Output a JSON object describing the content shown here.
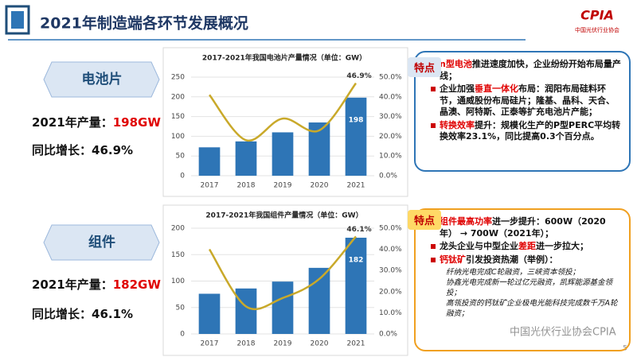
{
  "header": {
    "title": "2021年制造端各环节发展概况",
    "logo": "CPIA",
    "logo_sub": "中国光伏行业协会"
  },
  "sections": [
    {
      "label": "电池片",
      "output_label": "2021年产量：",
      "output_value": "198GW",
      "growth": "同比增长：46.9%"
    },
    {
      "label": "组件",
      "output_label": "2021年产量：",
      "output_value": "182GW",
      "growth": "同比增长：46.1%"
    }
  ],
  "chart_data": [
    {
      "type": "bar",
      "title": "2017-2021年我国电池片产量情况（单位：GW）",
      "categories": [
        "2017",
        "2018",
        "2019",
        "2020",
        "2021"
      ],
      "series": [
        {
          "type": "bar",
          "color": "#2e75b6",
          "values": [
            72,
            87,
            110,
            135,
            198
          ],
          "value_labels": [
            null,
            null,
            null,
            null,
            "198"
          ]
        },
        {
          "type": "line",
          "axis": "y2",
          "color": "#c9a92a",
          "values": [
            41,
            18,
            29,
            23,
            46.9
          ],
          "value_labels": [
            null,
            null,
            null,
            null,
            "46.9%"
          ]
        }
      ],
      "ylim": [
        0,
        250
      ],
      "yticks": [
        0,
        50,
        100,
        150,
        200,
        250
      ],
      "y2lim": [
        0,
        50
      ],
      "y2ticks": [
        {
          "value": 0,
          "label": "0.0%"
        },
        {
          "value": 10,
          "label": "10.0%"
        },
        {
          "value": 20,
          "label": "20.0%"
        },
        {
          "value": 30,
          "label": "30.0%"
        },
        {
          "value": 40,
          "label": "40.0%"
        },
        {
          "value": 50,
          "label": "50.0%"
        }
      ],
      "grid": true
    },
    {
      "type": "bar",
      "title": "2017-2021年我国组件产量情况（单位：GW）",
      "categories": [
        "2017",
        "2018",
        "2019",
        "2020",
        "2021"
      ],
      "series": [
        {
          "type": "bar",
          "color": "#2e75b6",
          "values": [
            76,
            86,
            99,
            125,
            182
          ],
          "value_labels": [
            null,
            null,
            null,
            null,
            "182"
          ]
        },
        {
          "type": "line",
          "axis": "y2",
          "color": "#c9a92a",
          "values": [
            40,
            13,
            17,
            26,
            46.1
          ],
          "value_labels": [
            null,
            null,
            null,
            null,
            "46.1%"
          ]
        }
      ],
      "ylim": [
        0,
        200
      ],
      "yticks": [
        0,
        50,
        100,
        150,
        200
      ],
      "y2lim": [
        0,
        50
      ],
      "y2ticks": [
        {
          "value": 0,
          "label": "0.0%"
        },
        {
          "value": 10,
          "label": "10.0%"
        },
        {
          "value": 20,
          "label": "20.0%"
        },
        {
          "value": 30,
          "label": "30.0%"
        },
        {
          "value": 40,
          "label": "40.0%"
        },
        {
          "value": 50,
          "label": "50.0%"
        }
      ],
      "grid": true
    }
  ],
  "notes": [
    {
      "tag": "特点",
      "items": [
        [
          {
            "text": "n型电池",
            "highlight": true
          },
          {
            "text": "推进速度加快，企业纷纷开始布局量产线；"
          }
        ],
        [
          {
            "text": "企业加强"
          },
          {
            "text": "垂直一体化",
            "highlight": true
          },
          {
            "text": "布局：润阳布局硅料环节，通威股份布局硅片；隆基、晶科、天合、晶澳、阿特斯、正泰等扩充电池片产能；"
          }
        ],
        [
          {
            "text": "转换效率",
            "highlight": true
          },
          {
            "text": "提升：规模化生产的P型PERC平均转换效率23.1%，同比提高0.3个百分点。"
          }
        ]
      ],
      "subitems": []
    },
    {
      "tag": "特点",
      "items": [
        [
          {
            "text": "组件最高功率",
            "highlight": true
          },
          {
            "text": "进一步提升：600W（2020年） → 700W（2021年）；"
          }
        ],
        [
          {
            "text": "龙头企业与中型企业"
          },
          {
            "text": "差距",
            "highlight": true
          },
          {
            "text": "进一步拉大；"
          }
        ],
        [
          {
            "text": "钙钛矿",
            "highlight": true
          },
          {
            "text": "引发投资热潮（举例）："
          }
        ]
      ],
      "subitems": [
        "纤纳光电完成C轮融资，三峡资本领投；",
        "协鑫光电完成新一轮过亿元融资，凯辉能源基金领投；",
        "高瓴投资的钙钛矿企业极电光能科技完成数千万A轮融资；"
      ]
    }
  ],
  "watermark": "中国光伏行业协会CPIA",
  "page": "5"
}
